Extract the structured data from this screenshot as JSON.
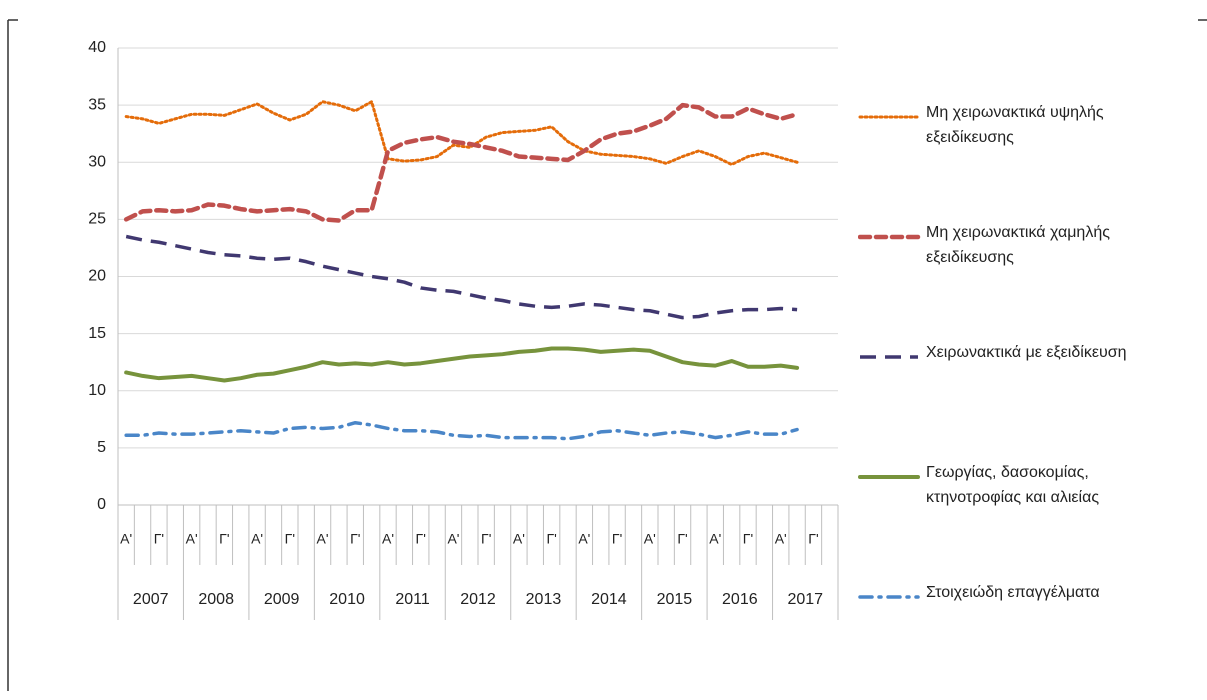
{
  "chart_data": {
    "type": "line",
    "categories": [
      "Α'",
      null,
      "Γ'",
      null,
      "Α'",
      null,
      "Γ'",
      null,
      "Α'",
      null,
      "Γ'",
      null,
      "Α'",
      null,
      "Γ'",
      null,
      "Α'",
      null,
      "Γ'",
      null,
      "Α'",
      null,
      "Γ'",
      null,
      "Α'",
      null,
      "Γ'",
      null,
      "Α'",
      null,
      "Γ'",
      null,
      "Α'",
      null,
      "Γ'",
      null,
      "Α'",
      null,
      "Γ'",
      null,
      "Α'",
      null,
      "Γ'",
      null
    ],
    "groups": [
      "2007",
      "2008",
      "2009",
      "2010",
      "2011",
      "2012",
      "2013",
      "2014",
      "2015",
      "2016",
      "2017"
    ],
    "ylim": [
      0,
      40
    ],
    "yticks": [
      0,
      5,
      10,
      15,
      20,
      25,
      30,
      35,
      40
    ],
    "grid": true,
    "series": [
      {
        "name": "Μη χειρωνακτικά υψηλής εξειδίκευσης",
        "color": "#e46c0a",
        "style": "dotted",
        "values": [
          34,
          33.8,
          33.4,
          33.8,
          34.2,
          34.2,
          34.1,
          34.6,
          35.1,
          34.3,
          33.7,
          34.2,
          35.3,
          35,
          34.5,
          35.3,
          30.3,
          30.1,
          30.2,
          30.5,
          31.5,
          31.3,
          32.2,
          32.6,
          32.7,
          32.8,
          33.1,
          31.8,
          31,
          30.7,
          30.6,
          30.5,
          30.3,
          29.9,
          30.5,
          31,
          30.5,
          29.8,
          30.5,
          30.8,
          30.4,
          30,
          null,
          null
        ]
      },
      {
        "name": "Μη χειρωνακτικά χαμηλής εξειδίκευσης",
        "color": "#c0504d",
        "style": "dashed",
        "values": [
          25,
          25.7,
          25.8,
          25.7,
          25.8,
          26.3,
          26.2,
          25.9,
          25.7,
          25.8,
          25.9,
          25.7,
          25,
          24.9,
          25.8,
          25.8,
          31,
          31.7,
          32,
          32.2,
          31.8,
          31.6,
          31.3,
          31,
          30.5,
          30.4,
          30.3,
          30.2,
          31,
          32,
          32.5,
          32.7,
          33.2,
          33.8,
          35,
          34.8,
          34,
          34,
          34.7,
          34.2,
          33.8,
          34.2,
          null,
          null
        ]
      },
      {
        "name": "Χειρωνακτικά με εξειδίκευση",
        "color": "#403870",
        "style": "longdash",
        "values": [
          23.5,
          23.2,
          23,
          22.7,
          22.4,
          22.1,
          21.9,
          21.8,
          21.6,
          21.5,
          21.6,
          21.3,
          20.9,
          20.6,
          20.3,
          20,
          19.8,
          19.5,
          19,
          18.8,
          18.7,
          18.4,
          18.1,
          17.9,
          17.6,
          17.4,
          17.3,
          17.4,
          17.6,
          17.5,
          17.3,
          17.1,
          17,
          16.7,
          16.4,
          16.5,
          16.8,
          17,
          17.1,
          17.1,
          17.2,
          17.1,
          null,
          null
        ]
      },
      {
        "name": "Γεωργίας, δασοκομίας, κτηνοτροφίας και αλιείας",
        "color": "#77933c",
        "style": "solid",
        "values": [
          11.6,
          11.3,
          11.1,
          11.2,
          11.3,
          11.1,
          10.9,
          11.1,
          11.4,
          11.5,
          11.8,
          12.1,
          12.5,
          12.3,
          12.4,
          12.3,
          12.5,
          12.3,
          12.4,
          12.6,
          12.8,
          13,
          13.1,
          13.2,
          13.4,
          13.5,
          13.7,
          13.7,
          13.6,
          13.4,
          13.5,
          13.6,
          13.5,
          13,
          12.5,
          12.3,
          12.2,
          12.6,
          12.1,
          12.1,
          12.2,
          12,
          null,
          null
        ]
      },
      {
        "name": "Στοιχειώδη επαγγέλματα",
        "color": "#4a86c8",
        "style": "dashdot",
        "values": [
          6.1,
          6.1,
          6.3,
          6.2,
          6.2,
          6.3,
          6.4,
          6.5,
          6.4,
          6.3,
          6.7,
          6.8,
          6.7,
          6.8,
          7.2,
          7,
          6.7,
          6.5,
          6.5,
          6.4,
          6.1,
          6,
          6.1,
          5.9,
          5.9,
          5.9,
          5.9,
          5.8,
          6,
          6.4,
          6.5,
          6.3,
          6.1,
          6.3,
          6.4,
          6.2,
          5.9,
          6.1,
          6.4,
          6.2,
          6.2,
          6.6,
          null,
          null
        ]
      }
    ]
  }
}
